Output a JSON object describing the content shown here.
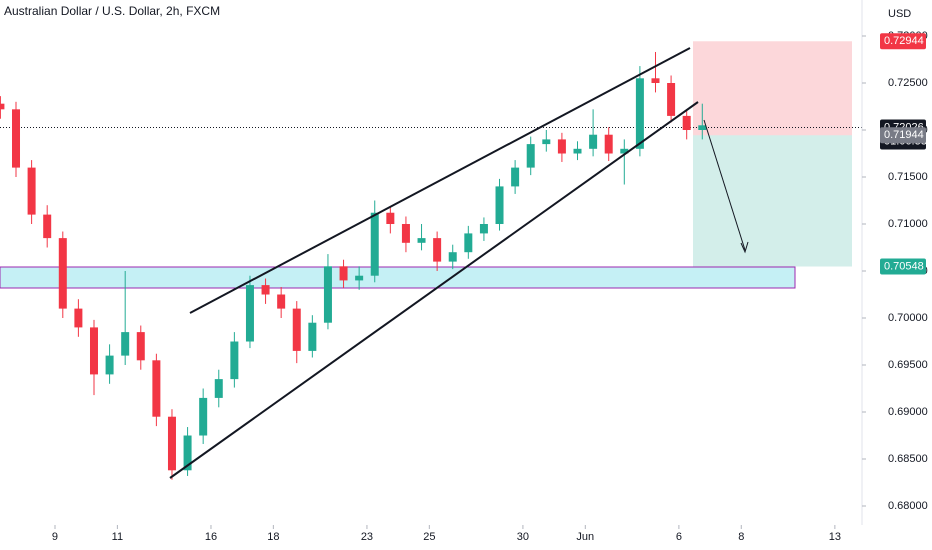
{
  "chart_data": {
    "type": "candlestick",
    "title": "Australian Dollar / U.S. Dollar, 2h, FXCM",
    "currency": "USD",
    "up_color": "#22ab94",
    "down_color": "#f23645",
    "xlim": [
      -1.763,
      25.87
    ],
    "ylim": [
      0.67798,
      0.73383
    ],
    "xticks": [
      {
        "value": 0,
        "label": "9"
      },
      {
        "value": 2,
        "label": "11"
      },
      {
        "value": 5,
        "label": "16"
      },
      {
        "value": 7,
        "label": "18"
      },
      {
        "value": 10,
        "label": "23"
      },
      {
        "value": 12,
        "label": "25"
      },
      {
        "value": 15,
        "label": "30"
      },
      {
        "value": 17,
        "label": "Jun"
      },
      {
        "value": 20,
        "label": "6"
      },
      {
        "value": 22,
        "label": "8"
      },
      {
        "value": 25,
        "label": "13"
      }
    ],
    "yticks": [
      {
        "value": 0.68,
        "label": "0.68000"
      },
      {
        "value": 0.685,
        "label": "0.68500"
      },
      {
        "value": 0.69,
        "label": "0.69000"
      },
      {
        "value": 0.695,
        "label": "0.69500"
      },
      {
        "value": 0.7,
        "label": "0.70000"
      },
      {
        "value": 0.705,
        "label": "0.70500"
      },
      {
        "value": 0.71,
        "label": "0.71000"
      },
      {
        "value": 0.715,
        "label": "0.71500"
      },
      {
        "value": 0.72,
        "label": "0.72000"
      },
      {
        "value": 0.725,
        "label": "0.72500"
      },
      {
        "value": 0.73,
        "label": "0.73000"
      }
    ],
    "x": [
      -1.75,
      -1.25,
      -0.75,
      -0.25,
      0.25,
      0.75,
      1.25,
      1.75,
      2.25,
      2.75,
      3.25,
      3.75,
      4.25,
      4.75,
      5.25,
      5.75,
      6.25,
      6.75,
      7.25,
      7.75,
      8.25,
      8.75,
      9.25,
      9.75,
      10.25,
      10.75,
      11.25,
      11.75,
      12.25,
      12.75,
      13.25,
      13.75,
      14.25,
      14.75,
      15.25,
      15.75,
      16.25,
      16.75,
      17.25,
      17.75,
      18.25,
      18.75,
      19.25,
      19.75,
      20.25,
      20.75
    ],
    "open": [
      0.7228,
      0.7222,
      0.716,
      0.711,
      0.7085,
      0.701,
      0.699,
      0.694,
      0.696,
      0.6985,
      0.6955,
      0.6895,
      0.6838,
      0.6875,
      0.6915,
      0.6935,
      0.6975,
      0.7035,
      0.7025,
      0.701,
      0.6965,
      0.6995,
      0.7055,
      0.704,
      0.7045,
      0.7112,
      0.71,
      0.708,
      0.7085,
      0.706,
      0.707,
      0.709,
      0.71,
      0.714,
      0.716,
      0.7185,
      0.719,
      0.7175,
      0.718,
      0.7195,
      0.7175,
      0.718,
      0.7255,
      0.725,
      0.7215,
      0.72
    ],
    "high": [
      0.7236,
      0.723,
      0.7168,
      0.712,
      0.7092,
      0.702,
      0.6998,
      0.6972,
      0.705,
      0.6992,
      0.6962,
      0.6903,
      0.6884,
      0.6925,
      0.6945,
      0.6985,
      0.7045,
      0.7042,
      0.7033,
      0.7018,
      0.7003,
      0.7068,
      0.7062,
      0.7055,
      0.7125,
      0.7118,
      0.7108,
      0.71,
      0.7092,
      0.7078,
      0.7098,
      0.7107,
      0.7148,
      0.7168,
      0.7193,
      0.72,
      0.7197,
      0.7188,
      0.7222,
      0.7203,
      0.719,
      0.7268,
      0.7283,
      0.7258,
      0.7222,
      0.7228
    ],
    "low": [
      0.7212,
      0.715,
      0.71,
      0.7075,
      0.7,
      0.698,
      0.6918,
      0.693,
      0.695,
      0.6945,
      0.6885,
      0.6828,
      0.6832,
      0.6866,
      0.6905,
      0.6926,
      0.6968,
      0.7015,
      0.7,
      0.6952,
      0.6958,
      0.6988,
      0.7032,
      0.703,
      0.7038,
      0.709,
      0.707,
      0.7072,
      0.705,
      0.7052,
      0.7063,
      0.7082,
      0.7093,
      0.7132,
      0.7152,
      0.7177,
      0.7166,
      0.7168,
      0.7172,
      0.7167,
      0.7142,
      0.7172,
      0.724,
      0.7208,
      0.719,
      0.719
    ],
    "close": [
      0.7222,
      0.716,
      0.711,
      0.7085,
      0.701,
      0.699,
      0.694,
      0.696,
      0.6985,
      0.6955,
      0.6895,
      0.6838,
      0.6875,
      0.6915,
      0.6935,
      0.6975,
      0.7035,
      0.7025,
      0.701,
      0.6965,
      0.6995,
      0.7055,
      0.704,
      0.7045,
      0.7112,
      0.71,
      0.708,
      0.7085,
      0.706,
      0.707,
      0.709,
      0.71,
      0.714,
      0.716,
      0.7185,
      0.719,
      0.7175,
      0.718,
      0.7195,
      0.7175,
      0.718,
      0.7255,
      0.725,
      0.7215,
      0.72,
      0.7205
    ],
    "price_labels": [
      {
        "value": 0.72944,
        "label": "0.72944",
        "color": "#f23645"
      },
      {
        "value": 0.72026,
        "label": "0.72026",
        "color": "#131722",
        "sublabel": "01:06:33"
      },
      {
        "value": 0.71944,
        "label": "0.71944",
        "color": "#787b86"
      },
      {
        "value": 0.70548,
        "label": "0.70548",
        "color": "#22ab94"
      }
    ]
  }
}
